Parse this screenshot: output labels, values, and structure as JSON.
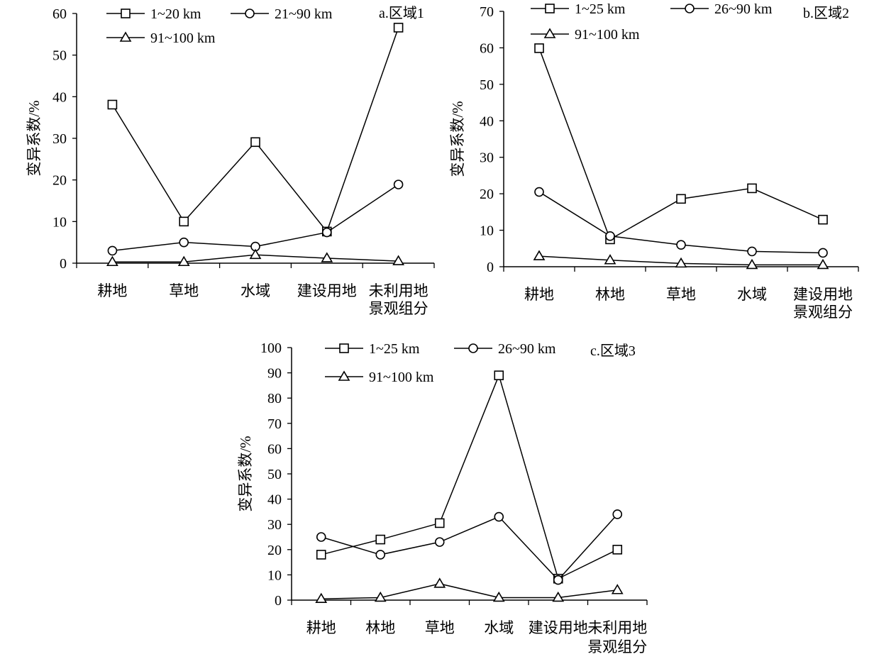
{
  "figure": {
    "marker_legend": {
      "square": "square-marker",
      "circle": "circle-marker",
      "triangle": "triangle-marker"
    }
  },
  "chart_data": [
    {
      "type": "line",
      "panel_label": "a.区域1",
      "ylabel": "变异系数/%",
      "xlabel": "景观组分",
      "categories": [
        "耕地",
        "草地",
        "水域",
        "建设用地",
        "未利用地"
      ],
      "ylim": [
        0,
        60
      ],
      "yticks": [
        0,
        10,
        20,
        30,
        40,
        50,
        60
      ],
      "grid": false,
      "legend_position": "top-left",
      "series": [
        {
          "name": "1~20 km",
          "marker": "square",
          "values": [
            38.1,
            10,
            29.1,
            7.6,
            56.6
          ]
        },
        {
          "name": "21~90 km",
          "marker": "circle",
          "values": [
            3,
            5,
            4,
            7.4,
            18.9
          ]
        },
        {
          "name": "91~100 km",
          "marker": "triangle",
          "values": [
            0.3,
            0.3,
            2,
            1.2,
            0.5
          ]
        }
      ]
    },
    {
      "type": "line",
      "panel_label": "b.区域2",
      "ylabel": "变异系数/%",
      "xlabel": "景观组分",
      "categories": [
        "耕地",
        "林地",
        "草地",
        "水域",
        "建设用地"
      ],
      "ylim": [
        0,
        70
      ],
      "yticks": [
        0,
        10,
        20,
        30,
        40,
        50,
        60,
        70
      ],
      "grid": false,
      "legend_position": "top-left",
      "series": [
        {
          "name": "1~25 km",
          "marker": "square",
          "values": [
            59.9,
            7.5,
            18.6,
            21.5,
            12.9
          ]
        },
        {
          "name": "26~90 km",
          "marker": "circle",
          "values": [
            20.5,
            8.4,
            6,
            4.2,
            3.8
          ]
        },
        {
          "name": "91~100 km",
          "marker": "triangle",
          "values": [
            2.9,
            1.8,
            0.9,
            0.5,
            0.5
          ]
        }
      ]
    },
    {
      "type": "line",
      "panel_label": "c.区域3",
      "ylabel": "变异系数/%",
      "xlabel": "景观组分",
      "categories": [
        "耕地",
        "林地",
        "草地",
        "水域",
        "建设用地",
        "未利用地"
      ],
      "ylim": [
        0,
        100
      ],
      "yticks": [
        0,
        10,
        20,
        30,
        40,
        50,
        60,
        70,
        80,
        90,
        100
      ],
      "grid": false,
      "legend_position": "top-left",
      "series": [
        {
          "name": "1~25 km",
          "marker": "square",
          "values": [
            18,
            24,
            30.5,
            89,
            8.5,
            20
          ]
        },
        {
          "name": "26~90 km",
          "marker": "circle",
          "values": [
            25,
            18,
            23,
            33,
            8,
            34
          ]
        },
        {
          "name": "91~100 km",
          "marker": "triangle",
          "values": [
            0.5,
            1,
            6.5,
            1,
            1,
            4
          ]
        }
      ]
    }
  ]
}
